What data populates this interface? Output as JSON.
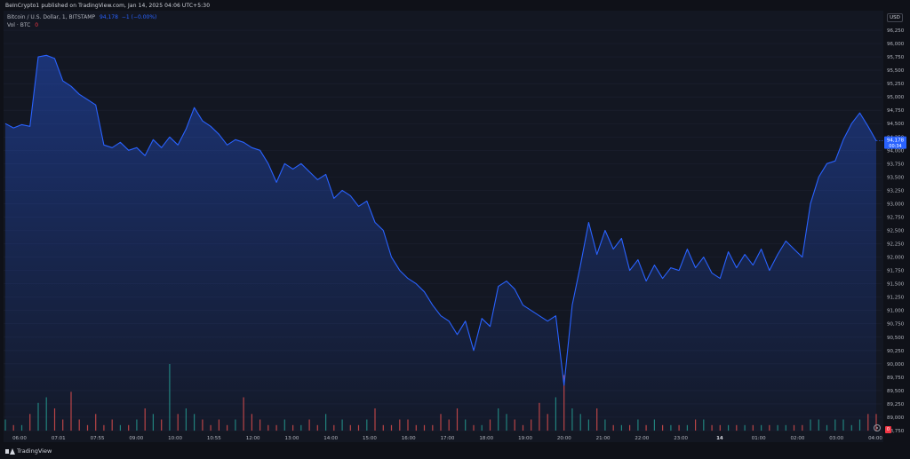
{
  "publisher": "BeInCrypto1 published on TradingView.com, Jan 14, 2025 04:06 UTC+5:30",
  "symbol": {
    "name": "Bitcoin / U.S. Dollar, 1, BITSTAMP",
    "last": "94,178",
    "change": "−1 (−0.00%)"
  },
  "volume": {
    "label": "Vol · BTC",
    "value": "0"
  },
  "currency": "USD",
  "last_price_label": "94,178",
  "countdown_label": "00:34",
  "footer": {
    "brand": "TradingView"
  },
  "colors": {
    "line": "#2962ff",
    "up_vol": "#26a69a",
    "down_vol": "#ef5350",
    "bg": "#131722"
  },
  "chart_data": {
    "type": "area",
    "title": "",
    "xlabel": "",
    "ylabel": "USD",
    "ylim": [
      88750,
      96350
    ],
    "x_ticks": [
      "06:00",
      "07:01",
      "07:55",
      "09:00",
      "10:00",
      "10:55",
      "12:00",
      "13:00",
      "14:00",
      "15:00",
      "16:00",
      "17:00",
      "18:00",
      "19:00",
      "20:00",
      "21:00",
      "22:00",
      "23:00",
      "14",
      "01:00",
      "02:00",
      "03:00",
      "04:00"
    ],
    "y_ticks": [
      96250,
      96000,
      95750,
      95500,
      95250,
      95000,
      94750,
      94500,
      94250,
      94000,
      93750,
      93500,
      93250,
      93000,
      92750,
      92500,
      92250,
      92000,
      91750,
      91500,
      91250,
      91000,
      90750,
      90500,
      90250,
      90000,
      89750,
      89500,
      89250,
      89000,
      88750
    ],
    "series": [
      {
        "values": [
          94500,
          94420,
          94480,
          94450,
          95750,
          95780,
          95720,
          95300,
          95200,
          95050,
          94950,
          94850,
          94100,
          94050,
          94150,
          94000,
          94050,
          93900,
          94200,
          94050,
          94250,
          94100,
          94400,
          94800,
          94550,
          94450,
          94300,
          94100,
          94200,
          94150,
          94050,
          94000,
          93750,
          93400,
          93750,
          93650,
          93750,
          93600,
          93450,
          93550,
          93100,
          93250,
          93150,
          92950,
          93050,
          92650,
          92500,
          92000,
          91750,
          91600,
          91500,
          91350,
          91100,
          90900,
          90800,
          90550,
          90800,
          90250,
          90850,
          90700,
          91450,
          91550,
          91400,
          91100,
          91000,
          90900,
          90800,
          90900,
          89600,
          91100,
          91850,
          92650,
          92050,
          92500,
          92150,
          92350,
          91750,
          91950,
          91550,
          91850,
          91600,
          91800,
          91750,
          92150,
          91800,
          92000,
          91700,
          91600,
          92100,
          91800,
          92050,
          91850,
          92150,
          91750,
          92050,
          92300,
          92150,
          92000,
          93000,
          93500,
          93750,
          93800,
          94200,
          94500,
          94700,
          94450,
          94178
        ]
      }
    ],
    "volume": [
      2,
      1,
      1,
      3,
      5,
      6,
      4,
      2,
      7,
      2,
      1,
      3,
      1,
      2,
      1,
      1,
      2,
      4,
      3,
      2,
      12,
      3,
      4,
      3,
      2,
      1,
      2,
      1,
      2,
      6,
      3,
      2,
      1,
      1,
      2,
      1,
      1,
      2,
      1,
      3,
      1,
      2,
      1,
      1,
      2,
      4,
      1,
      1,
      2,
      2,
      1,
      1,
      1,
      3,
      2,
      4,
      2,
      1,
      1,
      2,
      4,
      3,
      2,
      1,
      2,
      5,
      3,
      6,
      10,
      4,
      3,
      2,
      4,
      2,
      1,
      1,
      1,
      2,
      1,
      2,
      1,
      1,
      1,
      1,
      2,
      2,
      1,
      1,
      1,
      1,
      1,
      1,
      1,
      1,
      1,
      1,
      1,
      1,
      2,
      2,
      1,
      2,
      2,
      1,
      2,
      3,
      3
    ]
  }
}
